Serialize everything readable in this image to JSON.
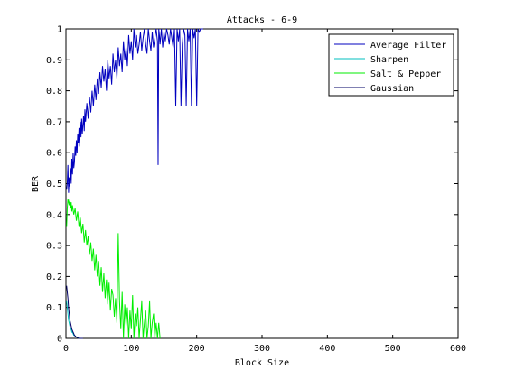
{
  "chart_data": {
    "type": "line",
    "title": "Attacks - 6-9",
    "xlabel": "Block Size",
    "ylabel": "BER",
    "xlim": [
      0,
      600
    ],
    "ylim": [
      0,
      1
    ],
    "xticks": [
      0,
      100,
      200,
      300,
      400,
      500,
      600
    ],
    "yticks": [
      0,
      0.1,
      0.2,
      0.3,
      0.4,
      0.5,
      0.6,
      0.7,
      0.8,
      0.9,
      1
    ],
    "grid": false,
    "legend_position": "top-right",
    "series": [
      {
        "name": "Average Filter",
        "color": "#0000bf",
        "x": [
          1,
          2,
          3,
          4,
          5,
          6,
          7,
          8,
          9,
          10,
          11,
          12,
          13,
          14,
          15,
          16,
          17,
          18,
          19,
          20,
          21,
          22,
          23,
          24,
          25,
          26,
          27,
          28,
          29,
          30,
          32,
          34,
          36,
          38,
          40,
          42,
          44,
          46,
          48,
          50,
          52,
          54,
          56,
          58,
          60,
          62,
          64,
          66,
          68,
          70,
          72,
          74,
          76,
          78,
          80,
          82,
          84,
          86,
          88,
          90,
          92,
          94,
          96,
          98,
          100,
          102,
          104,
          106,
          108,
          110,
          112,
          114,
          116,
          118,
          120,
          122,
          124,
          126,
          128,
          130,
          132,
          134,
          136,
          138,
          140,
          141,
          142,
          143,
          144,
          146,
          148,
          150,
          152,
          154,
          156,
          158,
          160,
          162,
          164,
          166,
          168,
          170,
          172,
          174,
          176,
          178,
          180,
          182,
          184,
          186,
          188,
          190,
          192,
          194,
          196,
          198,
          200,
          202,
          204,
          206,
          208,
          210
        ],
        "y": [
          0.48,
          0.5,
          0.56,
          0.47,
          0.52,
          0.49,
          0.55,
          0.5,
          0.58,
          0.53,
          0.6,
          0.55,
          0.57,
          0.62,
          0.59,
          0.64,
          0.6,
          0.66,
          0.63,
          0.68,
          0.62,
          0.7,
          0.65,
          0.71,
          0.66,
          0.69,
          0.72,
          0.67,
          0.74,
          0.7,
          0.76,
          0.71,
          0.78,
          0.73,
          0.8,
          0.75,
          0.82,
          0.77,
          0.84,
          0.79,
          0.86,
          0.81,
          0.88,
          0.83,
          0.87,
          0.8,
          0.9,
          0.84,
          0.88,
          0.82,
          0.92,
          0.86,
          0.9,
          0.84,
          0.94,
          0.88,
          0.92,
          0.86,
          0.96,
          0.9,
          0.94,
          0.88,
          0.98,
          0.92,
          0.96,
          0.9,
          1.0,
          0.94,
          0.98,
          0.92,
          0.95,
          0.99,
          0.93,
          0.97,
          1.0,
          0.95,
          0.92,
          1.0,
          0.96,
          0.93,
          0.99,
          0.94,
          0.97,
          1.0,
          0.96,
          0.56,
          1.0,
          0.98,
          0.95,
          1.0,
          0.94,
          0.99,
          0.96,
          1.0,
          0.98,
          0.95,
          1.0,
          0.97,
          0.94,
          1.0,
          0.75,
          1.0,
          0.96,
          1.0,
          0.75,
          0.95,
          1.0,
          0.98,
          0.75,
          1.0,
          0.96,
          1.0,
          0.75,
          1.0,
          0.97,
          1.0,
          0.75,
          1.0,
          0.99,
          1.0,
          1.0,
          1.0
        ]
      },
      {
        "name": "Sharpen",
        "color": "#00bfbf",
        "x": [
          1,
          2,
          3,
          4,
          5,
          6,
          7,
          8,
          9,
          10,
          11,
          12,
          13,
          14,
          15,
          16,
          17,
          18,
          19,
          20
        ],
        "y": [
          0.12,
          0.1,
          0.08,
          0.06,
          0.05,
          0.04,
          0.03,
          0.03,
          0.02,
          0.02,
          0.015,
          0.01,
          0.01,
          0.008,
          0.005,
          0.004,
          0.003,
          0.002,
          0.001,
          0
        ]
      },
      {
        "name": "Salt & Pepper",
        "color": "#00ee00",
        "x": [
          1,
          2,
          3,
          4,
          5,
          6,
          7,
          8,
          9,
          10,
          12,
          14,
          16,
          18,
          20,
          22,
          24,
          26,
          28,
          30,
          32,
          34,
          36,
          38,
          40,
          42,
          44,
          46,
          48,
          50,
          52,
          54,
          56,
          58,
          60,
          62,
          64,
          66,
          68,
          70,
          72,
          74,
          76,
          78,
          80,
          82,
          84,
          86,
          88,
          90,
          92,
          94,
          96,
          98,
          100,
          102,
          104,
          106,
          108,
          110,
          112,
          114,
          116,
          118,
          120,
          122,
          124,
          126,
          128,
          130,
          132,
          134,
          136,
          138,
          140,
          142,
          144
        ],
        "y": [
          0.36,
          0.42,
          0.45,
          0.44,
          0.43,
          0.45,
          0.42,
          0.44,
          0.41,
          0.43,
          0.4,
          0.42,
          0.38,
          0.41,
          0.36,
          0.39,
          0.34,
          0.37,
          0.31,
          0.35,
          0.3,
          0.33,
          0.27,
          0.31,
          0.25,
          0.29,
          0.22,
          0.27,
          0.2,
          0.25,
          0.17,
          0.23,
          0.15,
          0.21,
          0.13,
          0.19,
          0.11,
          0.18,
          0.09,
          0.16,
          0.14,
          0.07,
          0.13,
          0.05,
          0.34,
          0.12,
          0.03,
          0.15,
          0.0,
          0.11,
          0.04,
          0.1,
          0.0,
          0.09,
          0.03,
          0.14,
          0.0,
          0.08,
          0.04,
          0.1,
          0.0,
          0.06,
          0.12,
          0.0,
          0.05,
          0.09,
          0.0,
          0.04,
          0.12,
          0.0,
          0.05,
          0.08,
          0.0,
          0.05,
          0.0,
          0.05,
          0.0
        ]
      },
      {
        "name": "Gaussian",
        "color": "#000066",
        "x": [
          1,
          2,
          3,
          4,
          5,
          6,
          7,
          8,
          9,
          10,
          11,
          12,
          13,
          14,
          15,
          16,
          17,
          18,
          19,
          20,
          22,
          24,
          26
        ],
        "y": [
          0.17,
          0.15,
          0.13,
          0.1,
          0.08,
          0.06,
          0.05,
          0.04,
          0.03,
          0.025,
          0.02,
          0.015,
          0.01,
          0.008,
          0.006,
          0.004,
          0.003,
          0.002,
          0.001,
          0,
          0,
          0,
          0
        ]
      }
    ]
  }
}
